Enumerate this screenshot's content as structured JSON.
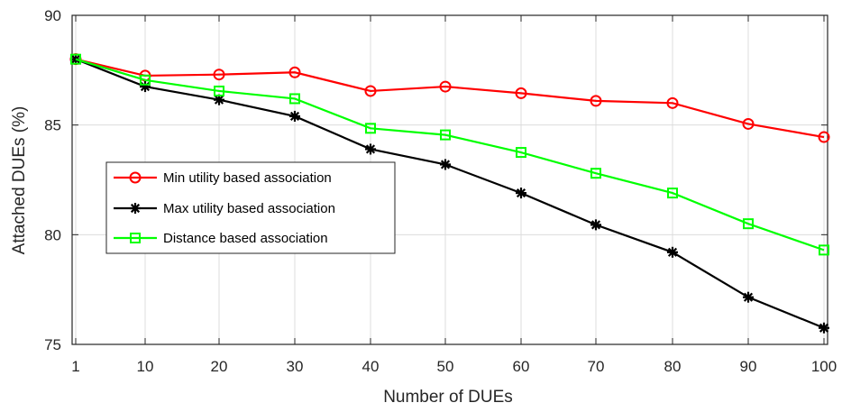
{
  "chart_data": {
    "type": "line",
    "title": "",
    "xlabel": "Number of DUEs",
    "ylabel": "Attached DUEs (%)",
    "x": [
      1,
      10,
      20,
      30,
      40,
      50,
      60,
      70,
      80,
      90,
      100
    ],
    "x_tick_labels": [
      "1",
      "10",
      "20",
      "30",
      "40",
      "50",
      "60",
      "70",
      "80",
      "90",
      "100"
    ],
    "ylim": [
      75,
      90
    ],
    "y_ticks": [
      75,
      80,
      85,
      90
    ],
    "grid": true,
    "legend_position": "middle-left",
    "series": [
      {
        "name": "Min utility based association",
        "color": "#ff0000",
        "marker": "circle",
        "values": [
          88.0,
          87.25,
          87.3,
          87.4,
          86.55,
          86.75,
          86.45,
          86.1,
          86.0,
          85.05,
          84.45
        ]
      },
      {
        "name": "Max utility based association",
        "color": "#000000",
        "marker": "asterisk",
        "values": [
          88.0,
          86.75,
          86.15,
          85.4,
          83.9,
          83.2,
          81.9,
          80.45,
          79.2,
          77.15,
          75.75
        ]
      },
      {
        "name": "Distance based association",
        "color": "#00ff00",
        "marker": "square",
        "values": [
          88.0,
          87.05,
          86.55,
          86.2,
          84.85,
          84.55,
          83.75,
          82.8,
          81.9,
          80.5,
          79.3
        ]
      }
    ]
  }
}
